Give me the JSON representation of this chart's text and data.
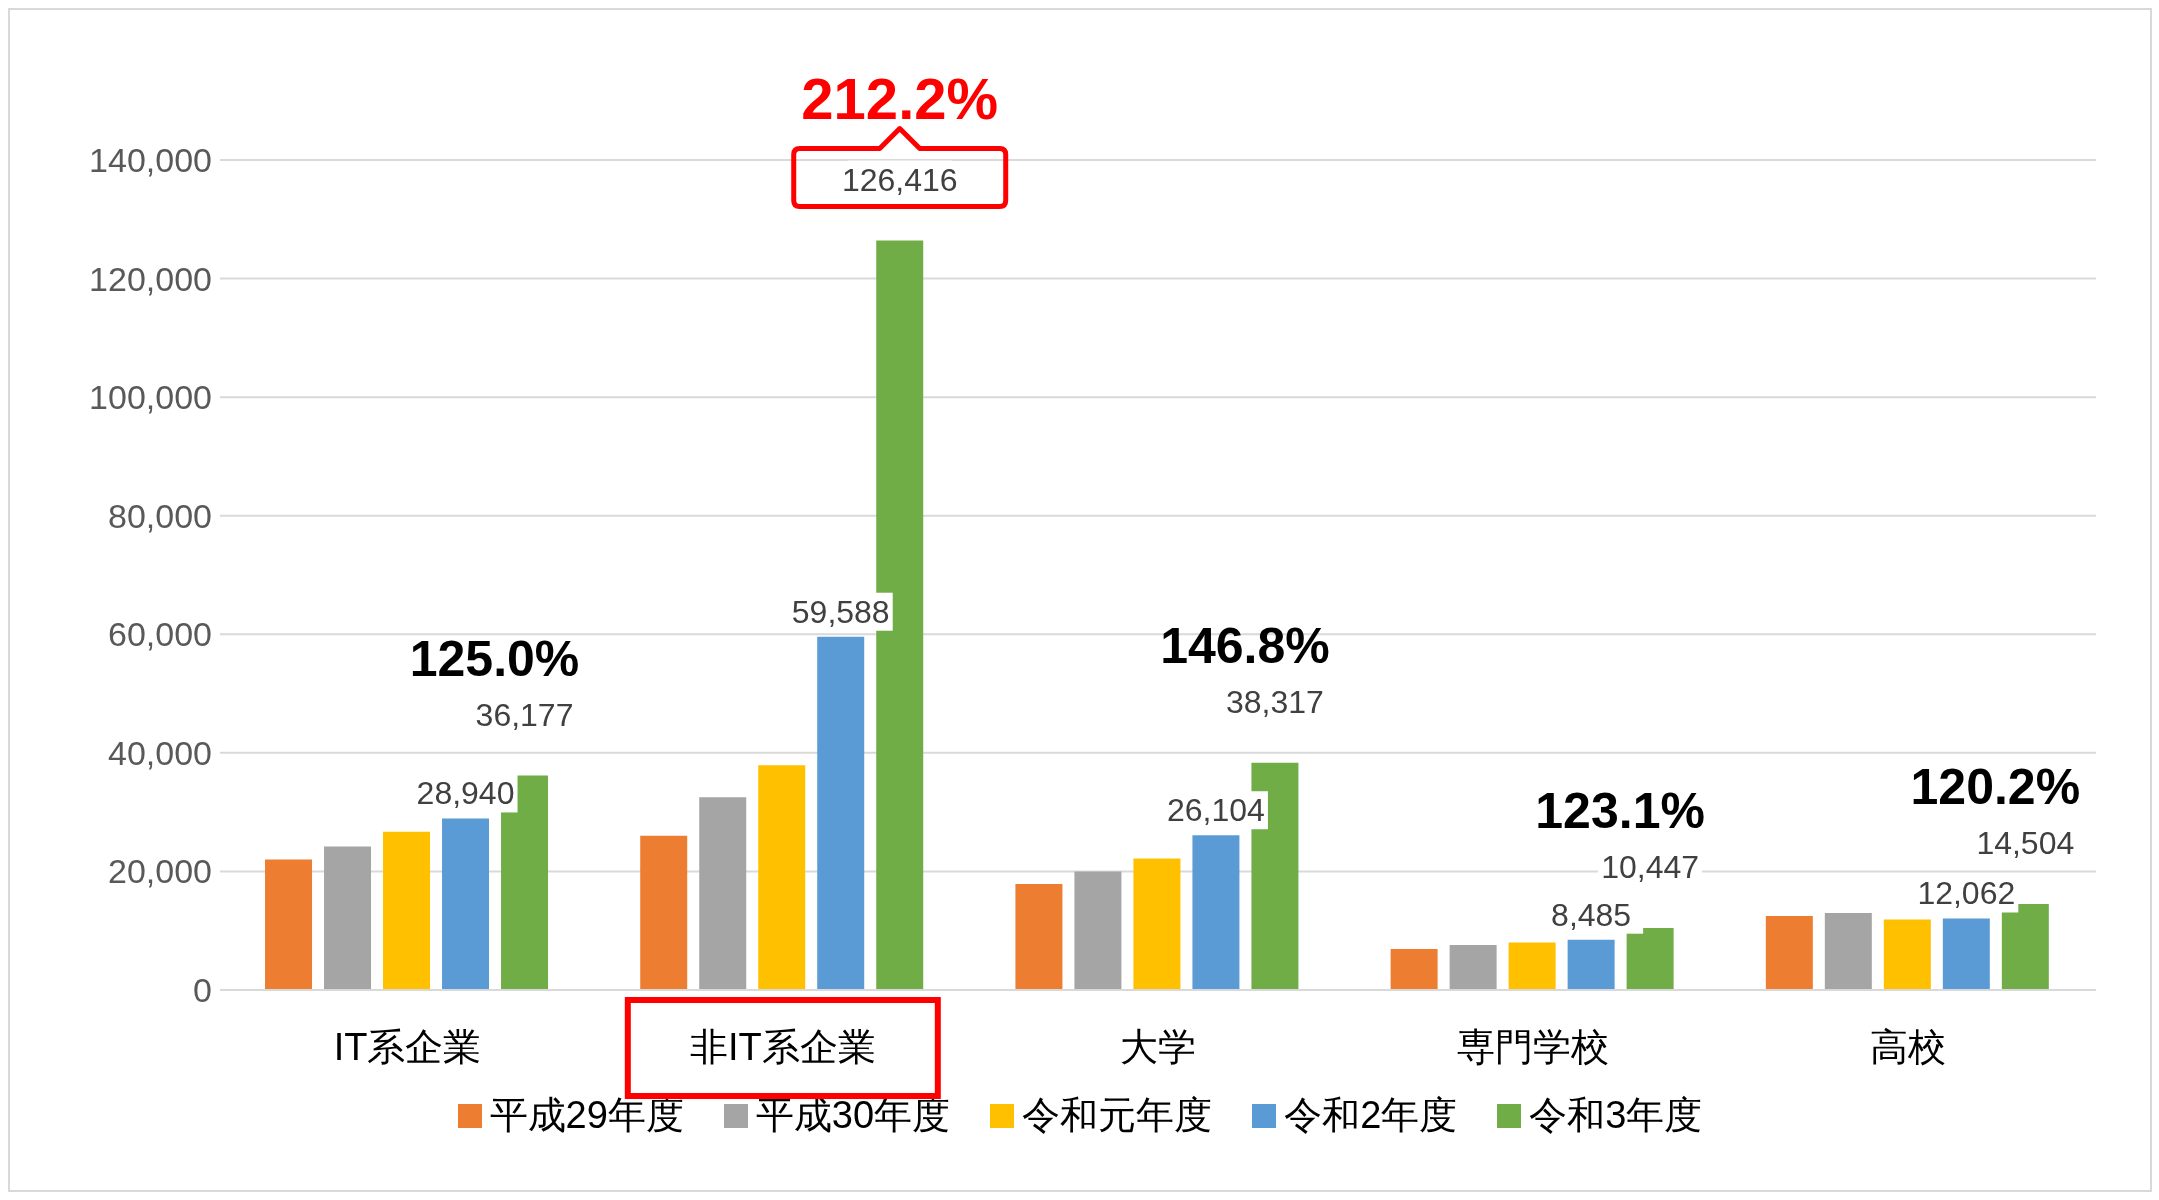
{
  "chart_data": {
    "type": "bar",
    "categories": [
      "IT系企業",
      "非IT系企業",
      "大学",
      "専門学校",
      "高校"
    ],
    "series": [
      {
        "name": "平成29年度",
        "color": "#ed7d31",
        "values": [
          22000,
          26000,
          17900,
          6900,
          12500
        ]
      },
      {
        "name": "平成30年度",
        "color": "#a5a5a5",
        "values": [
          24200,
          32500,
          20000,
          7600,
          13000
        ]
      },
      {
        "name": "令和元年度",
        "color": "#ffc000",
        "values": [
          26700,
          37900,
          22200,
          8000,
          11900
        ]
      },
      {
        "name": "令和2年度",
        "color": "#5b9bd5",
        "values": [
          28940,
          59588,
          26104,
          8485,
          12062
        ],
        "value_labels": [
          "28,940",
          "59,588",
          "26,104",
          "8,485",
          "12,062"
        ]
      },
      {
        "name": "令和3年度",
        "color": "#70ad47",
        "values": [
          36177,
          126416,
          38317,
          10447,
          14504
        ],
        "value_labels": [
          "36,177",
          "126,416",
          "38,317",
          "10,447",
          "14,504"
        ]
      }
    ],
    "ylim": [
      0,
      140000
    ],
    "yticks": [
      0,
      {
        "value": 20000,
        "label": "20,000"
      },
      {
        "value": 40000,
        "label": "40,000"
      },
      {
        "value": 60000,
        "label": "60,000"
      },
      {
        "value": 80000,
        "label": "80,000"
      },
      {
        "value": 100000,
        "label": "100,000"
      },
      {
        "value": 120000,
        "label": "120,000"
      },
      {
        "value": 140000,
        "label": "140,000"
      }
    ],
    "grid": "y",
    "legend": "bottom",
    "annotations": [
      "125.0%",
      "212.2%",
      "146.8%",
      "123.1%",
      "120.2%"
    ]
  }
}
